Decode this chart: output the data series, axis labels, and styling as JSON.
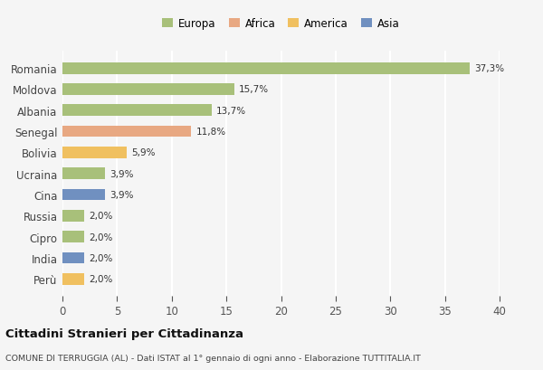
{
  "categories": [
    "Romania",
    "Moldova",
    "Albania",
    "Senegal",
    "Bolivia",
    "Ucraina",
    "Cina",
    "Russia",
    "Cipro",
    "India",
    "Perù"
  ],
  "values": [
    37.3,
    15.7,
    13.7,
    11.8,
    5.9,
    3.9,
    3.9,
    2.0,
    2.0,
    2.0,
    2.0
  ],
  "labels": [
    "37,3%",
    "15,7%",
    "13,7%",
    "11,8%",
    "5,9%",
    "3,9%",
    "3,9%",
    "2,0%",
    "2,0%",
    "2,0%",
    "2,0%"
  ],
  "colors": [
    "#a8c07a",
    "#a8c07a",
    "#a8c07a",
    "#e8a882",
    "#f0c060",
    "#a8c07a",
    "#7090c0",
    "#a8c07a",
    "#a8c07a",
    "#7090c0",
    "#f0c060"
  ],
  "legend": [
    {
      "label": "Europa",
      "color": "#a8c07a"
    },
    {
      "label": "Africa",
      "color": "#e8a882"
    },
    {
      "label": "America",
      "color": "#f0c060"
    },
    {
      "label": "Asia",
      "color": "#7090c0"
    }
  ],
  "title": "Cittadini Stranieri per Cittadinanza",
  "subtitle": "COMUNE DI TERRUGGIA (AL) - Dati ISTAT al 1° gennaio di ogni anno - Elaborazione TUTTITALIA.IT",
  "xlim": [
    0,
    40
  ],
  "xticks": [
    0,
    5,
    10,
    15,
    20,
    25,
    30,
    35,
    40
  ],
  "background_color": "#f5f5f5",
  "grid_color": "#ffffff",
  "bar_height": 0.55
}
